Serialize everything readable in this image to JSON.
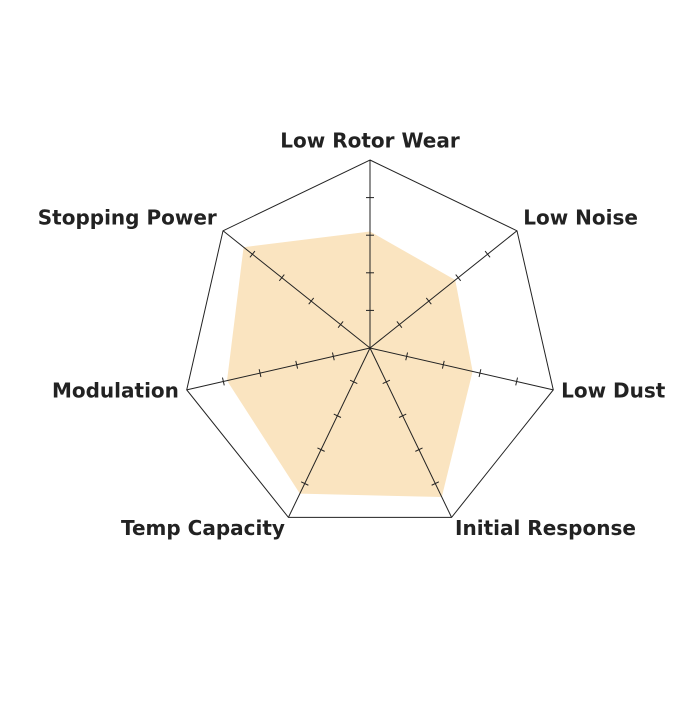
{
  "chart_data": {
    "type": "radar",
    "categories": [
      "Low Rotor Wear",
      "Low Noise",
      "Low Dust",
      "Initial Response",
      "Temp Capacity",
      "Modulation",
      "Stopping Power"
    ],
    "values": [
      3.1,
      2.9,
      2.8,
      4.4,
      4.3,
      3.9,
      4.3
    ],
    "color": "#fae4c0",
    "rlim": [
      0,
      5
    ],
    "rticks": [
      1,
      2,
      3,
      4
    ]
  }
}
